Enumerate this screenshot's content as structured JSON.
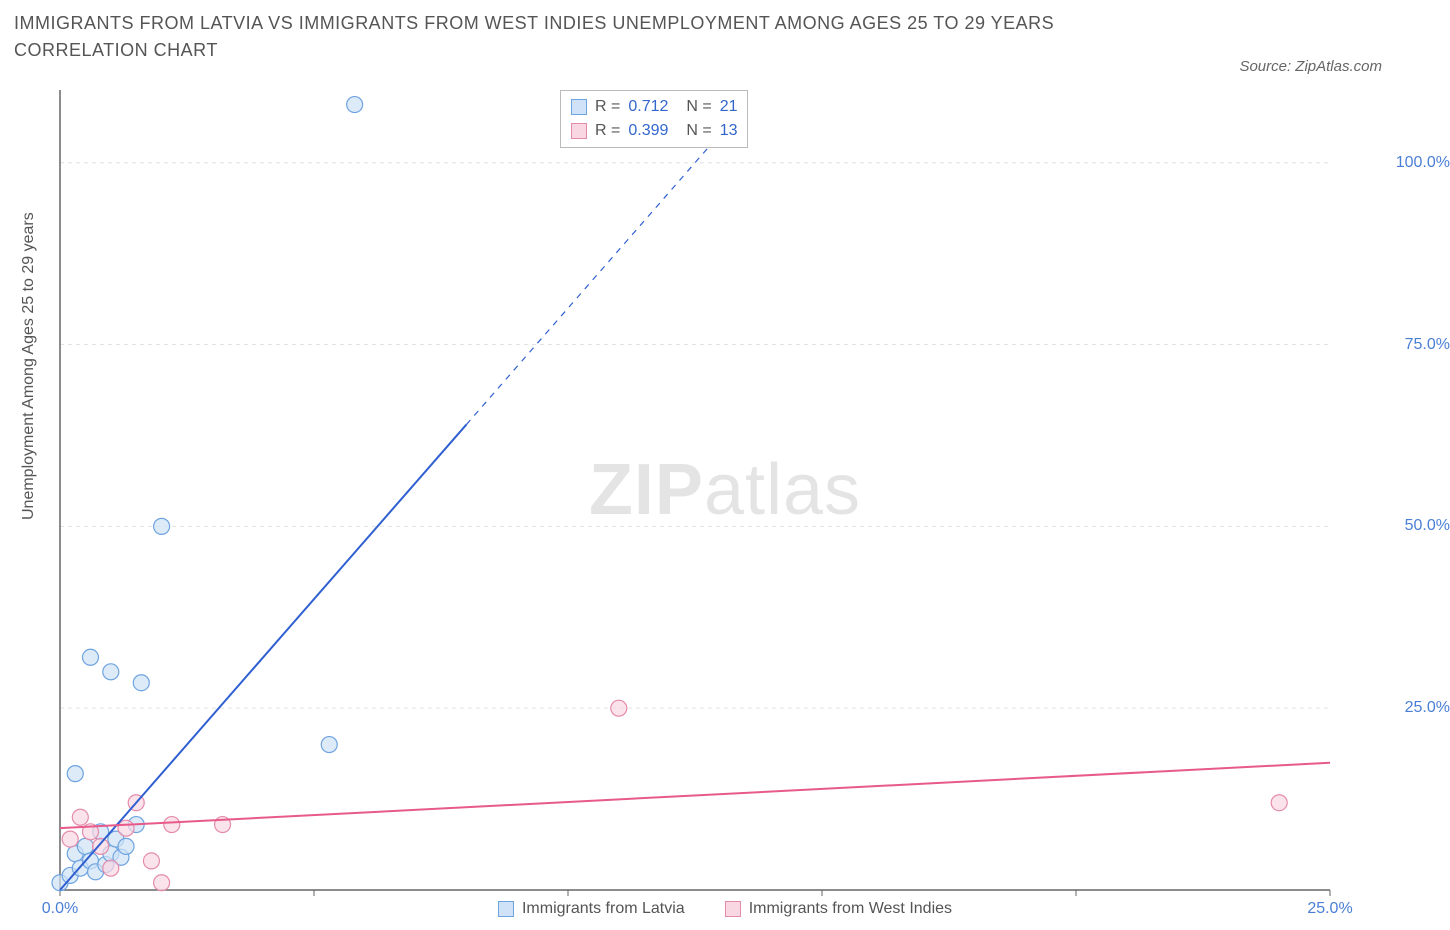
{
  "title": "IMMIGRANTS FROM LATVIA VS IMMIGRANTS FROM WEST INDIES UNEMPLOYMENT AMONG AGES 25 TO 29 YEARS CORRELATION CHART",
  "source": "Source: ZipAtlas.com",
  "ylabel": "Unemployment Among Ages 25 to 29 years",
  "watermark_left": "ZIP",
  "watermark_right": "atlas",
  "chart": {
    "type": "scatter",
    "background_color": "#ffffff",
    "grid_color": "#e2e2e2",
    "axis_color": "#666666",
    "xlim": [
      0,
      25
    ],
    "ylim_left": [
      0,
      110
    ],
    "ylim_right": [
      0,
      110
    ],
    "x_ticks": [
      0,
      5,
      10,
      15,
      20,
      25
    ],
    "x_tick_labels": [
      "0.0%",
      "",
      "",
      "",
      "",
      "25.0%"
    ],
    "y_right_ticks": [
      25,
      50,
      75,
      100
    ],
    "y_right_labels": [
      "25.0%",
      "50.0%",
      "75.0%",
      "100.0%"
    ],
    "marker_radius": 8,
    "marker_stroke_width": 1.2,
    "trend_line_width": 2
  },
  "legend_top": {
    "rows": [
      {
        "swatch_fill": "#cfe2f7",
        "swatch_stroke": "#6ea3e0",
        "r_label": "R =",
        "r_value": "0.712",
        "n_label": "N =",
        "n_value": "21"
      },
      {
        "swatch_fill": "#f9d7e2",
        "swatch_stroke": "#e48bab",
        "r_label": "R =",
        "r_value": "0.399",
        "n_label": "N =",
        "n_value": "13"
      }
    ]
  },
  "legend_bottom": {
    "items": [
      {
        "swatch_fill": "#cfe2f7",
        "swatch_stroke": "#6ea3e0",
        "label": "Immigrants from Latvia"
      },
      {
        "swatch_fill": "#f9d7e2",
        "swatch_stroke": "#e48bab",
        "label": "Immigrants from West Indies"
      }
    ]
  },
  "series": [
    {
      "name": "Immigrants from Latvia",
      "color_fill": "#cfe2f7",
      "color_stroke": "#6ea3e0",
      "trend_color": "#2f5fd0",
      "trend": {
        "x1": 0,
        "y1": 0,
        "x2_solid": 8,
        "y2_solid": 64,
        "x2_dash": 13.5,
        "y2_dash": 108
      },
      "points": [
        [
          0.0,
          1.0
        ],
        [
          0.2,
          2.0
        ],
        [
          0.3,
          5.0
        ],
        [
          0.4,
          3.0
        ],
        [
          0.5,
          6.0
        ],
        [
          0.6,
          4.0
        ],
        [
          0.7,
          2.5
        ],
        [
          0.8,
          8.0
        ],
        [
          0.9,
          3.5
        ],
        [
          1.0,
          5.0
        ],
        [
          1.1,
          7.0
        ],
        [
          1.2,
          4.5
        ],
        [
          1.3,
          6.0
        ],
        [
          1.5,
          9.0
        ],
        [
          0.3,
          16.0
        ],
        [
          1.0,
          30.0
        ],
        [
          1.6,
          28.5
        ],
        [
          2.0,
          50.0
        ],
        [
          5.3,
          20.0
        ],
        [
          0.6,
          32.0
        ],
        [
          5.8,
          108.0
        ]
      ]
    },
    {
      "name": "Immigrants from West Indies",
      "color_fill": "#f9d7e2",
      "color_stroke": "#e48bab",
      "trend_color": "#e75a89",
      "trend": {
        "x1": 0,
        "y1": 8.5,
        "x2_solid": 25,
        "y2_solid": 17.5,
        "x2_dash": 25,
        "y2_dash": 17.5
      },
      "points": [
        [
          0.2,
          7.0
        ],
        [
          0.4,
          10.0
        ],
        [
          0.6,
          8.0
        ],
        [
          0.8,
          6.0
        ],
        [
          1.0,
          3.0
        ],
        [
          1.3,
          8.5
        ],
        [
          1.5,
          12.0
        ],
        [
          1.8,
          4.0
        ],
        [
          2.0,
          1.0
        ],
        [
          2.2,
          9.0
        ],
        [
          3.2,
          9.0
        ],
        [
          11.0,
          25.0
        ],
        [
          24.0,
          12.0
        ]
      ]
    }
  ]
}
